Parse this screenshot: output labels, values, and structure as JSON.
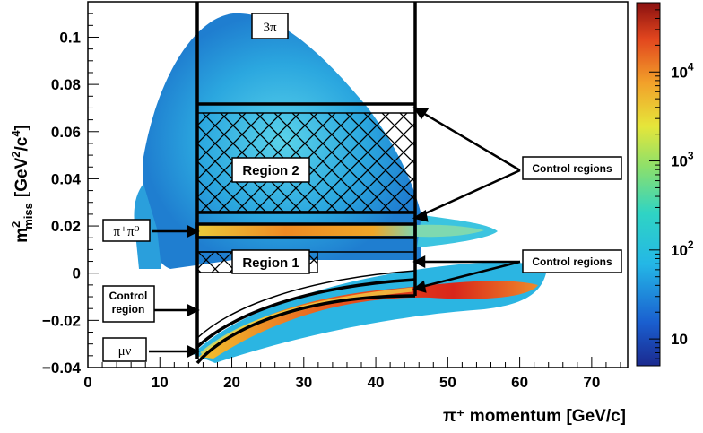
{
  "chart_data": {
    "type": "heatmap",
    "xlabel": "π⁺ momentum [GeV/c]",
    "ylabel": "m²miss [GeV²/c⁴]",
    "ylabel_parts": {
      "base": "m",
      "sup": "2",
      "sub": "miss",
      "units": "[GeV",
      "units_sup1": "2",
      "units_mid": "/c",
      "units_sup2": "4",
      "units_end": "]"
    },
    "xlim": [
      0,
      75
    ],
    "ylim": [
      -0.04,
      0.115
    ],
    "xticks": [
      "0",
      "10",
      "20",
      "30",
      "40",
      "50",
      "60",
      "70"
    ],
    "yticks": [
      "−0.04",
      "−0.02",
      "0",
      "0.02",
      "0.04",
      "0.06",
      "0.08",
      "0.1"
    ],
    "colorbar": {
      "scale": "log",
      "range": [
        5,
        60000
      ],
      "ticks": [
        {
          "value": 10,
          "base": "10",
          "exp": ""
        },
        {
          "value": 100,
          "base": "10",
          "exp": "2"
        },
        {
          "value": 1000,
          "base": "10",
          "exp": "3"
        },
        {
          "value": 10000,
          "base": "10",
          "exp": "4"
        }
      ]
    },
    "regions": [
      {
        "name": "3π",
        "x": [
          15,
          45
        ],
        "y": [
          0.072,
          0.115
        ]
      },
      {
        "name": "Region 2",
        "x": [
          15,
          45
        ],
        "y": [
          0.026,
          0.068
        ],
        "hatched": true
      },
      {
        "name": "π⁺π⁰",
        "x": [
          15,
          45
        ],
        "y": [
          0.015,
          0.021
        ]
      },
      {
        "name": "Region 1",
        "x": [
          15,
          35
        ],
        "y": [
          0,
          0.01
        ],
        "hatched": true
      },
      {
        "name": "μν",
        "x": [
          15,
          45
        ],
        "curve": "muon band"
      }
    ],
    "annotations": [
      "Control regions",
      "Control regions",
      "Control region"
    ],
    "grid": false,
    "legend": "none"
  }
}
